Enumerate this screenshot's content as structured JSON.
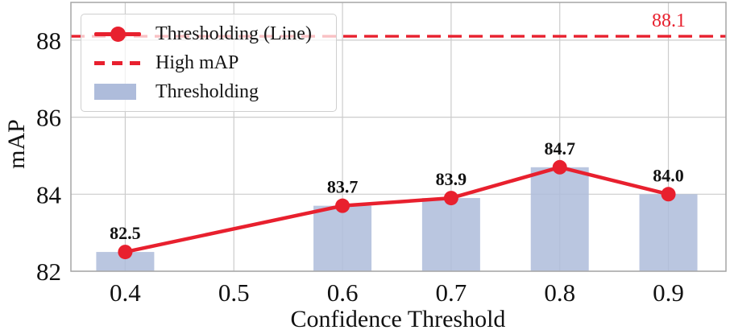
{
  "chart_data": {
    "type": "composite",
    "xlabel": "Confidence Threshold",
    "ylabel": "mAP",
    "x_ticks": [
      "0.4",
      "0.5",
      "0.6",
      "0.7",
      "0.8",
      "0.9"
    ],
    "x_tick_values": [
      0.4,
      0.5,
      0.6,
      0.7,
      0.8,
      0.9
    ],
    "y_ticks": [
      82,
      84,
      86,
      88
    ],
    "xlim": [
      0.35,
      0.953
    ],
    "ylim": [
      82,
      88.98
    ],
    "grid": true,
    "series": [
      {
        "name": "Thresholding (Line)",
        "type": "line",
        "x": [
          0.4,
          0.6,
          0.7,
          0.8,
          0.9
        ],
        "values": [
          82.5,
          83.7,
          83.9,
          84.7,
          84.0
        ],
        "color": "#e8202e"
      },
      {
        "name": "High mAP",
        "type": "hline",
        "value": 88.1,
        "label": "88.1",
        "style": "dashed",
        "color": "#e8202e"
      },
      {
        "name": "Thresholding",
        "type": "bar",
        "x": [
          0.4,
          0.6,
          0.7,
          0.8,
          0.9
        ],
        "values": [
          82.5,
          83.7,
          83.9,
          84.7,
          84.0
        ],
        "color": "#aebcdb"
      }
    ],
    "value_labels": [
      "82.5",
      "83.7",
      "83.9",
      "84.7",
      "84.0"
    ],
    "legend": {
      "position": "upper left",
      "entries": [
        {
          "label": "Thresholding (Line)",
          "type": "line-marker"
        },
        {
          "label": "High mAP",
          "type": "dashed"
        },
        {
          "label": "Thresholding",
          "type": "patch"
        }
      ]
    },
    "colors": {
      "line": "#e8202e",
      "bar": "#aebcdb",
      "grid": "#cccccc",
      "spine": "#a6a6a6",
      "text": "#111111"
    }
  }
}
